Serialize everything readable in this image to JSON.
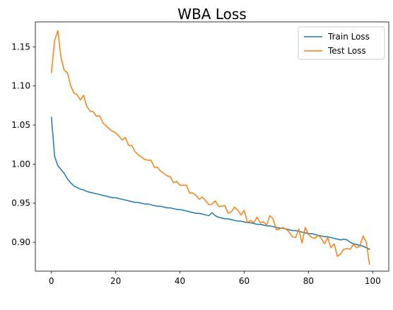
{
  "chart_data": {
    "type": "line",
    "title": "WBA Loss",
    "xlabel": "",
    "ylabel": "",
    "xlim": [
      -5,
      105
    ],
    "ylim": [
      0.863,
      1.182
    ],
    "grid": false,
    "legend_position": "top-right",
    "x_ticks": [
      0,
      20,
      40,
      60,
      80,
      100
    ],
    "y_ticks": [
      0.9,
      0.95,
      1.0,
      1.05,
      1.1,
      1.15
    ],
    "x_tick_labels": [
      "0",
      "20",
      "40",
      "60",
      "80",
      "100"
    ],
    "y_tick_labels": [
      "0.90",
      "0.95",
      "1.00",
      "1.05",
      "1.10",
      "1.15"
    ],
    "series": [
      {
        "name": "Train Loss",
        "color": "#1f77b4",
        "x": [
          0,
          1,
          2,
          3,
          4,
          5,
          6,
          7,
          8,
          9,
          10,
          11,
          12,
          13,
          14,
          15,
          16,
          17,
          18,
          19,
          20,
          21,
          22,
          23,
          24,
          25,
          26,
          27,
          28,
          29,
          30,
          31,
          32,
          33,
          34,
          35,
          36,
          37,
          38,
          39,
          40,
          41,
          42,
          43,
          44,
          45,
          46,
          47,
          48,
          49,
          50,
          51,
          52,
          53,
          54,
          55,
          56,
          57,
          58,
          59,
          60,
          61,
          62,
          63,
          64,
          65,
          66,
          67,
          68,
          69,
          70,
          71,
          72,
          73,
          74,
          75,
          76,
          77,
          78,
          79,
          80,
          81,
          82,
          83,
          84,
          85,
          86,
          87,
          88,
          89,
          90,
          91,
          92,
          93,
          94,
          95,
          96,
          97,
          98,
          99
        ],
        "values": [
          1.06,
          1.01,
          0.998,
          0.993,
          0.988,
          0.981,
          0.976,
          0.972,
          0.97,
          0.968,
          0.967,
          0.965,
          0.964,
          0.963,
          0.962,
          0.961,
          0.96,
          0.959,
          0.958,
          0.957,
          0.957,
          0.956,
          0.955,
          0.954,
          0.953,
          0.952,
          0.951,
          0.951,
          0.95,
          0.949,
          0.949,
          0.948,
          0.947,
          0.946,
          0.946,
          0.945,
          0.944,
          0.944,
          0.943,
          0.942,
          0.942,
          0.941,
          0.94,
          0.939,
          0.938,
          0.937,
          0.937,
          0.936,
          0.935,
          0.934,
          0.938,
          0.934,
          0.932,
          0.931,
          0.93,
          0.93,
          0.929,
          0.928,
          0.927,
          0.927,
          0.926,
          0.925,
          0.925,
          0.924,
          0.923,
          0.923,
          0.922,
          0.921,
          0.921,
          0.92,
          0.919,
          0.918,
          0.918,
          0.917,
          0.916,
          0.915,
          0.915,
          0.914,
          0.913,
          0.912,
          0.911,
          0.911,
          0.91,
          0.909,
          0.908,
          0.907,
          0.907,
          0.906,
          0.905,
          0.904,
          0.903,
          0.904,
          0.903,
          0.9,
          0.898,
          0.897,
          0.896,
          0.895,
          0.893,
          0.891
        ]
      },
      {
        "name": "Test Loss",
        "color": "#ff7f0e",
        "x": [
          0,
          1,
          2,
          3,
          4,
          5,
          6,
          7,
          8,
          9,
          10,
          11,
          12,
          13,
          14,
          15,
          16,
          17,
          18,
          19,
          20,
          21,
          22,
          23,
          24,
          25,
          26,
          27,
          28,
          29,
          30,
          31,
          32,
          33,
          34,
          35,
          36,
          37,
          38,
          39,
          40,
          41,
          42,
          43,
          44,
          45,
          46,
          47,
          48,
          49,
          50,
          51,
          52,
          53,
          54,
          55,
          56,
          57,
          58,
          59,
          60,
          61,
          62,
          63,
          64,
          65,
          66,
          67,
          68,
          69,
          70,
          71,
          72,
          73,
          74,
          75,
          76,
          77,
          78,
          79,
          80,
          81,
          82,
          83,
          84,
          85,
          86,
          87,
          88,
          89,
          90,
          91,
          92,
          93,
          94,
          95,
          96,
          97,
          98,
          99
        ],
        "values": [
          1.117,
          1.158,
          1.171,
          1.136,
          1.12,
          1.117,
          1.1,
          1.091,
          1.089,
          1.082,
          1.088,
          1.074,
          1.068,
          1.067,
          1.061,
          1.062,
          1.053,
          1.049,
          1.045,
          1.042,
          1.04,
          1.036,
          1.031,
          1.034,
          1.024,
          1.024,
          1.016,
          1.012,
          1.009,
          1.006,
          1.005,
          1.005,
          0.996,
          0.996,
          0.991,
          0.988,
          0.985,
          0.984,
          0.976,
          0.978,
          0.973,
          0.973,
          0.973,
          0.963,
          0.963,
          0.96,
          0.955,
          0.958,
          0.953,
          0.948,
          0.949,
          0.953,
          0.946,
          0.946,
          0.947,
          0.937,
          0.939,
          0.945,
          0.941,
          0.935,
          0.941,
          0.925,
          0.928,
          0.925,
          0.932,
          0.925,
          0.926,
          0.922,
          0.934,
          0.93,
          0.916,
          0.917,
          0.919,
          0.917,
          0.913,
          0.907,
          0.906,
          0.917,
          0.899,
          0.919,
          0.91,
          0.906,
          0.905,
          0.909,
          0.905,
          0.898,
          0.906,
          0.893,
          0.898,
          0.882,
          0.885,
          0.891,
          0.892,
          0.891,
          0.897,
          0.893,
          0.895,
          0.908,
          0.9,
          0.872
        ]
      }
    ]
  }
}
